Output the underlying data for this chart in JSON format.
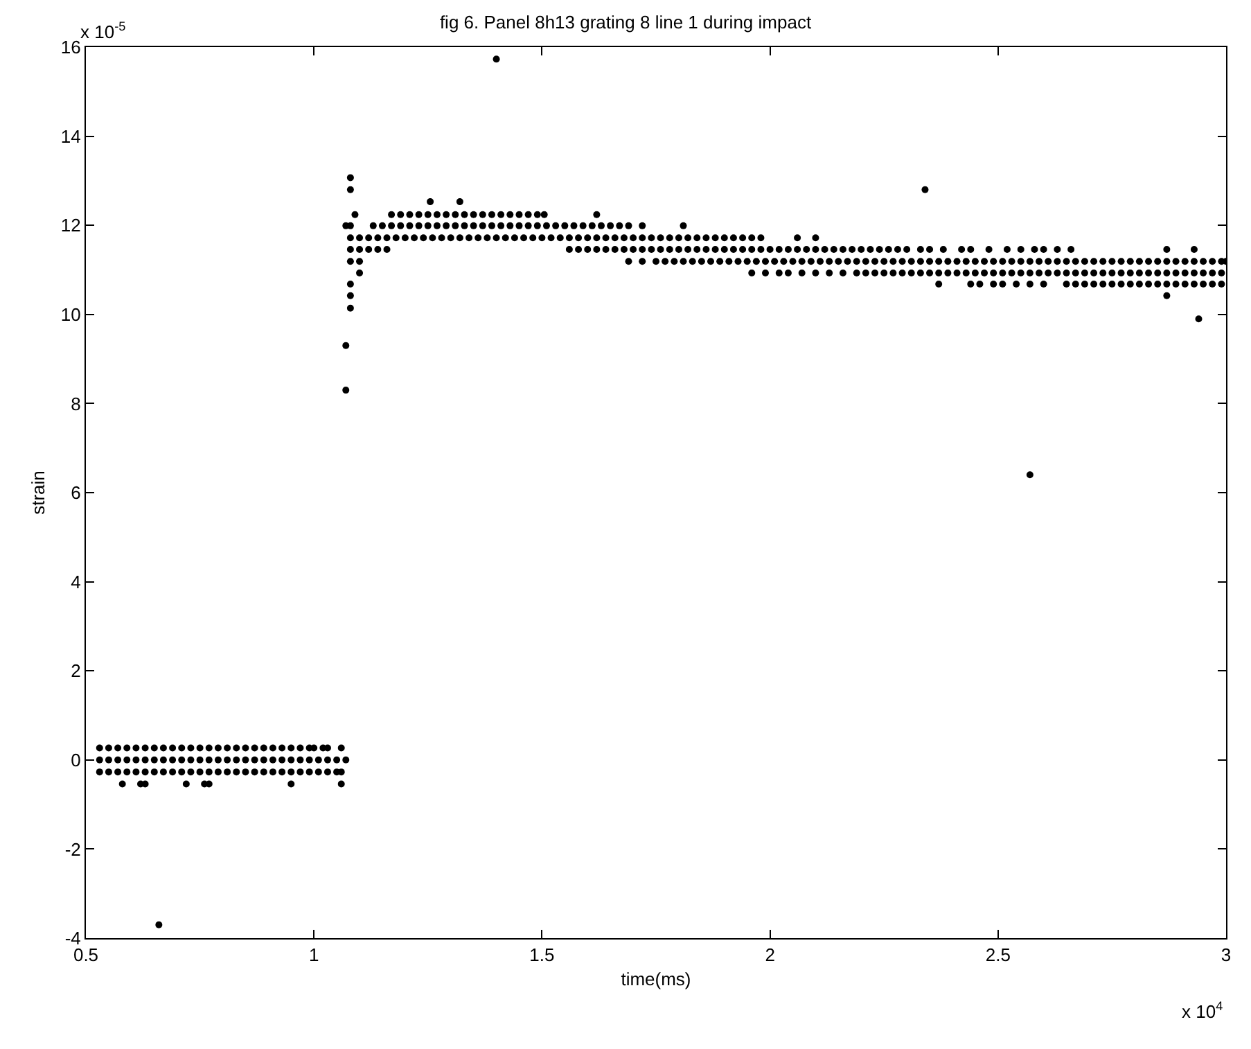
{
  "chart_data": {
    "type": "scatter",
    "title": "fig 6. Panel 8h13 grating 8 line 1 during impact",
    "xlabel": "time(ms)",
    "ylabel": "strain",
    "xlim": [
      0.5,
      3
    ],
    "xticks": [
      0.5,
      1,
      1.5,
      2,
      2.5,
      3
    ],
    "ylim": [
      -4,
      16
    ],
    "yticks": [
      -4,
      -2,
      0,
      2,
      4,
      6,
      8,
      10,
      12,
      14,
      16
    ],
    "marker": "circle",
    "annotations": [
      "x 10$^{-5}$",
      "x 10$^{4}$"
    ],
    "series": [
      {
        "color": "#000000",
        "x": [
          0.53,
          0.55,
          0.57,
          0.59,
          0.61,
          0.63,
          0.65,
          0.67,
          0.69,
          0.71,
          0.73,
          0.75,
          0.77,
          0.79,
          0.81,
          0.83,
          0.85,
          0.87,
          0.89,
          0.91,
          0.93,
          0.95,
          0.97,
          0.99,
          1.0,
          1.02,
          1.03,
          1.06
        ],
        "values": [
          0.27,
          0.27,
          0.27,
          0.27,
          0.27,
          0.27,
          0.27,
          0.27,
          0.27,
          0.27,
          0.27,
          0.27,
          0.27,
          0.27,
          0.27,
          0.27,
          0.27,
          0.27,
          0.27,
          0.27,
          0.27,
          0.27,
          0.27,
          0.27,
          0.27,
          0.27,
          0.27,
          0.27
        ]
      },
      {
        "color": "#000000",
        "x": [
          0.53,
          0.55,
          0.57,
          0.59,
          0.61,
          0.63,
          0.65,
          0.67,
          0.69,
          0.71,
          0.73,
          0.75,
          0.77,
          0.79,
          0.81,
          0.83,
          0.85,
          0.87,
          0.89,
          0.91,
          0.93,
          0.95,
          0.97,
          0.99,
          1.01,
          1.03,
          1.05,
          1.07
        ],
        "values": [
          0,
          0,
          0,
          0,
          0,
          0,
          0,
          0,
          0,
          0,
          0,
          0,
          0,
          0,
          0,
          0,
          0,
          0,
          0,
          0,
          0,
          0,
          0,
          0,
          0,
          0,
          0,
          0
        ]
      },
      {
        "color": "#000000",
        "x": [
          0.53,
          0.55,
          0.57,
          0.59,
          0.61,
          0.63,
          0.65,
          0.67,
          0.69,
          0.71,
          0.73,
          0.75,
          0.77,
          0.79,
          0.81,
          0.83,
          0.85,
          0.87,
          0.89,
          0.91,
          0.93,
          0.95,
          0.97,
          0.99,
          1.01,
          1.03,
          1.05,
          1.06
        ],
        "values": [
          -0.27,
          -0.27,
          -0.27,
          -0.27,
          -0.27,
          -0.27,
          -0.27,
          -0.27,
          -0.27,
          -0.27,
          -0.27,
          -0.27,
          -0.27,
          -0.27,
          -0.27,
          -0.27,
          -0.27,
          -0.27,
          -0.27,
          -0.27,
          -0.27,
          -0.27,
          -0.27,
          -0.27,
          -0.27,
          -0.27,
          -0.27,
          -0.27
        ]
      },
      {
        "color": "#000000",
        "x": [
          0.58,
          0.62,
          0.63,
          0.72,
          0.76,
          0.77,
          0.95,
          1.06
        ],
        "values": [
          -0.54,
          -0.54,
          -0.54,
          -0.54,
          -0.54,
          -0.54,
          -0.54,
          -0.54
        ]
      },
      {
        "color": "#000000",
        "x": [
          0.66,
          1.07,
          1.07,
          1.08,
          1.08,
          1.08,
          1.1,
          1.08,
          1.08,
          1.09,
          1.255,
          1.32,
          1.4,
          1.505,
          1.62,
          1.72,
          1.81,
          2.06,
          2.1,
          2.34,
          2.57,
          2.87,
          2.93,
          2.87,
          2.94
        ],
        "values": [
          -3.7,
          8.3,
          9.3,
          10.14,
          10.42,
          10.68,
          10.93,
          12.8,
          13.07,
          12.24,
          12.53,
          12.53,
          15.73,
          12.24,
          12.24,
          11.99,
          11.99,
          11.72,
          11.72,
          12.8,
          6.4,
          11.46,
          11.46,
          10.42,
          9.9
        ]
      },
      {
        "color": "#000000",
        "x": [
          1.17,
          1.19,
          1.21,
          1.23,
          1.25,
          1.27,
          1.29,
          1.31,
          1.33,
          1.35,
          1.37,
          1.39,
          1.41,
          1.43,
          1.45,
          1.47,
          1.49
        ],
        "values": [
          12.24,
          12.24,
          12.24,
          12.24,
          12.24,
          12.24,
          12.24,
          12.24,
          12.24,
          12.24,
          12.24,
          12.24,
          12.24,
          12.24,
          12.24,
          12.24,
          12.24
        ]
      },
      {
        "color": "#000000",
        "x": [
          1.07,
          1.08,
          1.13,
          1.15,
          1.17,
          1.19,
          1.21,
          1.23,
          1.25,
          1.27,
          1.29,
          1.31,
          1.33,
          1.35,
          1.37,
          1.39,
          1.41,
          1.43,
          1.45,
          1.47,
          1.49,
          1.51,
          1.53,
          1.55,
          1.57,
          1.59,
          1.61,
          1.63,
          1.65,
          1.67,
          1.69
        ],
        "values": [
          11.99,
          11.99,
          11.99,
          11.99,
          11.99,
          11.99,
          11.99,
          11.99,
          11.99,
          11.99,
          11.99,
          11.99,
          11.99,
          11.99,
          11.99,
          11.99,
          11.99,
          11.99,
          11.99,
          11.99,
          11.99,
          11.99,
          11.99,
          11.99,
          11.99,
          11.99,
          11.99,
          11.99,
          11.99,
          11.99,
          11.99
        ]
      },
      {
        "color": "#000000",
        "x": [
          1.08,
          1.1,
          1.12,
          1.14,
          1.16,
          1.18,
          1.2,
          1.22,
          1.24,
          1.26,
          1.28,
          1.3,
          1.32,
          1.34,
          1.36,
          1.38,
          1.4,
          1.42,
          1.44,
          1.46,
          1.48,
          1.5,
          1.52,
          1.54,
          1.56,
          1.58,
          1.6,
          1.62,
          1.64,
          1.66,
          1.68,
          1.7,
          1.72,
          1.74,
          1.76,
          1.78,
          1.8,
          1.82,
          1.84,
          1.86,
          1.88,
          1.9,
          1.92,
          1.94,
          1.96,
          1.98
        ],
        "values": [
          11.72,
          11.72,
          11.72,
          11.72,
          11.72,
          11.72,
          11.72,
          11.72,
          11.72,
          11.72,
          11.72,
          11.72,
          11.72,
          11.72,
          11.72,
          11.72,
          11.72,
          11.72,
          11.72,
          11.72,
          11.72,
          11.72,
          11.72,
          11.72,
          11.72,
          11.72,
          11.72,
          11.72,
          11.72,
          11.72,
          11.72,
          11.72,
          11.72,
          11.72,
          11.72,
          11.72,
          11.72,
          11.72,
          11.72,
          11.72,
          11.72,
          11.72,
          11.72,
          11.72,
          11.72,
          11.72
        ]
      },
      {
        "color": "#000000",
        "x": [
          1.08,
          1.1,
          1.12,
          1.14,
          1.16,
          1.56,
          1.58,
          1.6,
          1.62,
          1.64,
          1.66,
          1.68,
          1.7,
          1.72,
          1.74,
          1.76,
          1.78,
          1.8,
          1.82,
          1.84,
          1.86,
          1.88,
          1.9,
          1.92,
          1.94,
          1.96,
          1.98,
          2.0,
          2.02,
          2.04,
          2.06,
          2.08,
          2.1,
          2.12,
          2.14,
          2.16,
          2.18,
          2.2,
          2.22,
          2.24,
          2.26,
          2.28,
          2.3,
          2.33,
          2.35,
          2.38,
          2.42,
          2.44,
          2.48,
          2.52,
          2.55,
          2.58,
          2.6,
          2.63,
          2.66
        ],
        "values": [
          11.46,
          11.46,
          11.46,
          11.46,
          11.46,
          11.46,
          11.46,
          11.46,
          11.46,
          11.46,
          11.46,
          11.46,
          11.46,
          11.46,
          11.46,
          11.46,
          11.46,
          11.46,
          11.46,
          11.46,
          11.46,
          11.46,
          11.46,
          11.46,
          11.46,
          11.46,
          11.46,
          11.46,
          11.46,
          11.46,
          11.46,
          11.46,
          11.46,
          11.46,
          11.46,
          11.46,
          11.46,
          11.46,
          11.46,
          11.46,
          11.46,
          11.46,
          11.46,
          11.46,
          11.46,
          11.46,
          11.46,
          11.46,
          11.46,
          11.46,
          11.46,
          11.46,
          11.46,
          11.46,
          11.46
        ]
      },
      {
        "color": "#000000",
        "x": [
          1.08,
          1.1,
          1.69,
          1.72,
          1.75,
          1.77,
          1.79,
          1.81,
          1.83,
          1.85,
          1.87,
          1.89,
          1.91,
          1.93,
          1.95,
          1.97,
          1.99,
          2.01,
          2.03,
          2.05,
          2.07,
          2.09,
          2.11,
          2.13,
          2.15,
          2.17,
          2.19,
          2.21,
          2.23,
          2.25,
          2.27,
          2.29,
          2.31,
          2.33,
          2.35,
          2.37,
          2.39,
          2.41,
          2.43,
          2.45,
          2.47,
          2.49,
          2.51,
          2.53,
          2.55,
          2.57,
          2.59,
          2.61,
          2.63,
          2.65,
          2.67,
          2.69,
          2.71,
          2.73,
          2.75,
          2.77,
          2.79,
          2.81,
          2.83,
          2.85,
          2.87,
          2.89,
          2.91,
          2.93,
          2.95,
          2.97,
          2.99,
          3.0
        ],
        "values": [
          11.19,
          11.19,
          11.19,
          11.19,
          11.19,
          11.19,
          11.19,
          11.19,
          11.19,
          11.19,
          11.19,
          11.19,
          11.19,
          11.19,
          11.19,
          11.19,
          11.19,
          11.19,
          11.19,
          11.19,
          11.19,
          11.19,
          11.19,
          11.19,
          11.19,
          11.19,
          11.19,
          11.19,
          11.19,
          11.19,
          11.19,
          11.19,
          11.19,
          11.19,
          11.19,
          11.19,
          11.19,
          11.19,
          11.19,
          11.19,
          11.19,
          11.19,
          11.19,
          11.19,
          11.19,
          11.19,
          11.19,
          11.19,
          11.19,
          11.19,
          11.19,
          11.19,
          11.19,
          11.19,
          11.19,
          11.19,
          11.19,
          11.19,
          11.19,
          11.19,
          11.19,
          11.19,
          11.19,
          11.19,
          11.19,
          11.19,
          11.19,
          11.19
        ]
      },
      {
        "color": "#000000",
        "x": [
          1.96,
          1.99,
          2.02,
          2.04,
          2.07,
          2.1,
          2.13,
          2.16,
          2.19,
          2.21,
          2.23,
          2.25,
          2.27,
          2.29,
          2.31,
          2.33,
          2.35,
          2.37,
          2.39,
          2.41,
          2.43,
          2.45,
          2.47,
          2.49,
          2.51,
          2.53,
          2.55,
          2.57,
          2.59,
          2.61,
          2.63,
          2.65,
          2.67,
          2.69,
          2.71,
          2.73,
          2.75,
          2.77,
          2.79,
          2.81,
          2.83,
          2.85,
          2.87,
          2.89,
          2.91,
          2.93,
          2.95,
          2.97,
          2.99
        ],
        "values": [
          10.93,
          10.93,
          10.93,
          10.93,
          10.93,
          10.93,
          10.93,
          10.93,
          10.93,
          10.93,
          10.93,
          10.93,
          10.93,
          10.93,
          10.93,
          10.93,
          10.93,
          10.93,
          10.93,
          10.93,
          10.93,
          10.93,
          10.93,
          10.93,
          10.93,
          10.93,
          10.93,
          10.93,
          10.93,
          10.93,
          10.93,
          10.93,
          10.93,
          10.93,
          10.93,
          10.93,
          10.93,
          10.93,
          10.93,
          10.93,
          10.93,
          10.93,
          10.93,
          10.93,
          10.93,
          10.93,
          10.93,
          10.93,
          10.93
        ]
      },
      {
        "color": "#000000",
        "x": [
          2.37,
          2.44,
          2.46,
          2.49,
          2.51,
          2.54,
          2.57,
          2.6,
          2.65,
          2.67,
          2.69,
          2.71,
          2.73,
          2.75,
          2.77,
          2.79,
          2.81,
          2.83,
          2.85,
          2.87,
          2.89,
          2.91,
          2.93,
          2.95,
          2.97,
          2.99
        ],
        "values": [
          10.68,
          10.68,
          10.68,
          10.68,
          10.68,
          10.68,
          10.68,
          10.68,
          10.68,
          10.68,
          10.68,
          10.68,
          10.68,
          10.68,
          10.68,
          10.68,
          10.68,
          10.68,
          10.68,
          10.68,
          10.68,
          10.68,
          10.68,
          10.68,
          10.68,
          10.68
        ]
      }
    ]
  }
}
